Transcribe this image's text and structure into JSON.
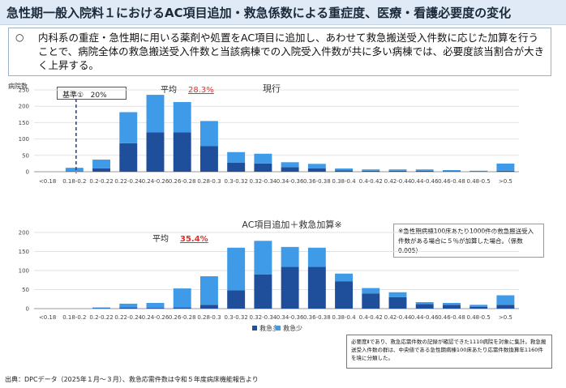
{
  "title": "急性期一般入院料１におけるAC項目追加・救急係数による重症度、医療・看護必要度の変化",
  "bullet": {
    "mark": "○",
    "text": "内科系の重症・急性期に用いる薬剤や処置をAC項目に追加し、あわせて救急搬送受入件数に応じた加算を行うことで、病院全体の救急搬送受入件数と当該病棟での入院受入件数が共に多い病棟では、必要度該当割合が大きく上昇する。"
  },
  "colors": {
    "dark": "#1f4e9a",
    "light": "#3f9ae8",
    "red": "#e0302b",
    "dash": "#2b3b8c"
  },
  "footer": "出典：DPCデータ（2025年１月～３月）、救急応需件数は令和５年度病床機能報告より",
  "note": "必要度Ⅱであり、救急応需件数の記録が確認できた1110病院を対象に集計。救急搬送受入件数の群は、中央値である急性期病棟100床あたり応需件数換算年1160件を境に分類した。",
  "right_note": "※急性期病棟100床あたり1000件の救急搬送受入件数がある場合に５％が加算した場合。（係数0.005）",
  "base_label": "基準①",
  "base_value": "20%",
  "chart_data": [
    {
      "type": "bar",
      "title": "現行",
      "ylabel": "病院数",
      "ylim": [
        0,
        250
      ],
      "yticks": [
        0,
        50,
        100,
        150,
        200,
        250
      ],
      "avg_label": "平均",
      "avg_value": "28.3%",
      "categories": [
        "<0.18",
        "0.18-0.2",
        "0.2-0.22",
        "0.22-0.24",
        "0.24-0.26",
        "0.26-0.28",
        "0.28-0.3",
        "0.3-0.32",
        "0.32-0.34",
        "0.34-0.36",
        "0.36-0.38",
        "0.38-0.4",
        "0.4-0.42",
        "0.42-0.44",
        "0.44-0.46",
        "0.46-0.48",
        "0.48-0.5",
        ">0.5"
      ],
      "series": [
        {
          "name": "救急多",
          "values": [
            0,
            1,
            10,
            87,
            120,
            120,
            78,
            28,
            25,
            14,
            10,
            4,
            3,
            3,
            3,
            2,
            1,
            3
          ]
        },
        {
          "name": "救急少",
          "values": [
            0,
            11,
            27,
            95,
            115,
            93,
            77,
            32,
            30,
            15,
            14,
            6,
            4,
            4,
            4,
            3,
            2,
            22
          ]
        }
      ]
    },
    {
      "type": "bar",
      "title": "AC項目追加＋救急加算※",
      "ylim": [
        0,
        200
      ],
      "yticks": [
        0,
        50,
        100,
        150,
        200
      ],
      "avg_label": "平均",
      "avg_value": "35.4%",
      "categories": [
        "<0.18",
        "0.18-0.2",
        "0.2-0.22",
        "0.22-0.24",
        "0.24-0.26",
        "0.26-0.28",
        "0.28-0.3",
        "0.3-0.32",
        "0.32-0.34",
        "0.34-0.36",
        "0.36-0.38",
        "0.38-0.4",
        "0.4-0.42",
        "0.42-0.44",
        "0.44-0.46",
        "0.46-0.48",
        "0.48-0.5",
        ">0.5"
      ],
      "legend": [
        "救急多",
        "救急少"
      ],
      "series": [
        {
          "name": "救急多",
          "values": [
            0,
            0,
            1,
            3,
            2,
            3,
            10,
            48,
            90,
            110,
            110,
            72,
            40,
            30,
            12,
            10,
            5,
            10
          ]
        },
        {
          "name": "救急少",
          "values": [
            0,
            0,
            2,
            10,
            13,
            50,
            75,
            112,
            88,
            52,
            50,
            20,
            14,
            13,
            5,
            5,
            5,
            25
          ]
        }
      ]
    }
  ]
}
